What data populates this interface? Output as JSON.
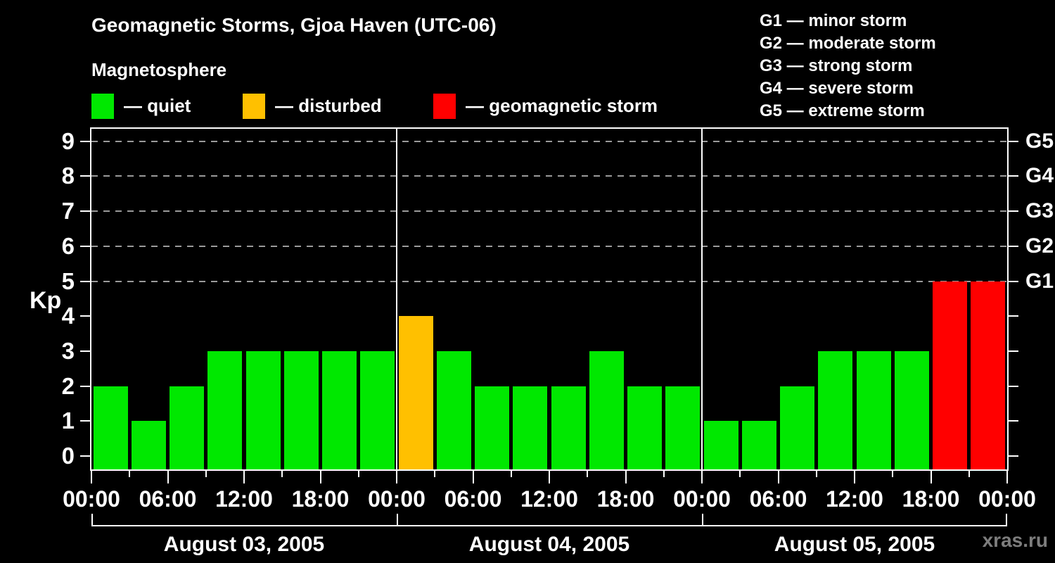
{
  "header": {
    "title": "Geomagnetic Storms, Gjoa Haven (UTC-06)",
    "subtitle": "Magnetosphere"
  },
  "legend": {
    "items": [
      {
        "key": "quiet",
        "label": "— quiet",
        "color": "#00E800"
      },
      {
        "key": "disturbed",
        "label": "— disturbed",
        "color": "#FFC000"
      },
      {
        "key": "storm",
        "label": "— geomagnetic storm",
        "color": "#FF0000"
      }
    ]
  },
  "storm_scale": {
    "items": [
      "G1 — minor storm",
      "G2 — moderate storm",
      "G3 — strong storm",
      "G4 — severe storm",
      "G5 — extreme storm"
    ]
  },
  "axis": {
    "kp_label": "Kp",
    "y_ticks": [
      "0",
      "1",
      "2",
      "3",
      "4",
      "5",
      "6",
      "7",
      "8",
      "9"
    ],
    "right_labels": [
      {
        "kp": 5,
        "label": "G1"
      },
      {
        "kp": 6,
        "label": "G2"
      },
      {
        "kp": 7,
        "label": "G3"
      },
      {
        "kp": 8,
        "label": "G4"
      },
      {
        "kp": 9,
        "label": "G5"
      }
    ]
  },
  "footer": {
    "watermark": "xras.ru"
  },
  "chart_data": {
    "type": "bar",
    "title": "Geomagnetic Storms, Gjoa Haven (UTC-06)",
    "subtitle": "Magnetosphere",
    "ylabel": "Kp",
    "ylim": [
      0,
      9
    ],
    "grid": "horizontal dashed lines at Kp 5,6,7,8,9 (G1-G5 storm levels)",
    "legend_position": "top-left swatches; storm scale top-right",
    "bar_interval_hours": 3,
    "x_time_labels": [
      "00:00",
      "06:00",
      "12:00",
      "18:00",
      "00:00",
      "06:00",
      "12:00",
      "18:00",
      "00:00",
      "06:00",
      "12:00",
      "18:00",
      "00:00"
    ],
    "days": [
      {
        "date": "August 03, 2005",
        "values": [
          2,
          1,
          2,
          3,
          3,
          3,
          3,
          3
        ]
      },
      {
        "date": "August 04, 2005",
        "values": [
          4,
          3,
          2,
          2,
          2,
          3,
          2,
          2
        ]
      },
      {
        "date": "August 05, 2005",
        "values": [
          1,
          1,
          2,
          3,
          3,
          3,
          5,
          5
        ]
      }
    ],
    "colors": {
      "quiet": "#00E800",
      "disturbed": "#FFC000",
      "storm": "#FF0000"
    },
    "color_rule": "Kp<=3 quiet(green), Kp=4 disturbed(orange), Kp>=5 storm(red)"
  }
}
